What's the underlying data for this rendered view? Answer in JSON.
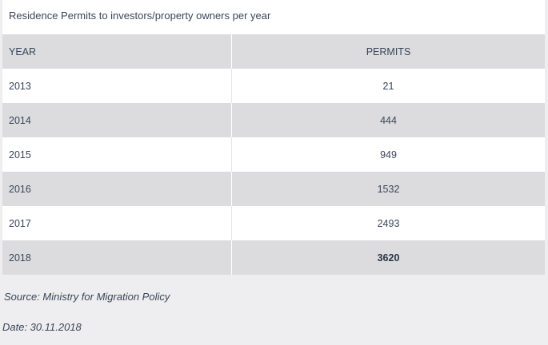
{
  "chart_data": {
    "type": "table",
    "title": "Residence Permits to investors/property owners per year",
    "columns": [
      "YEAR",
      "PERMITS"
    ],
    "rows": [
      {
        "year": "2013",
        "permits": "21"
      },
      {
        "year": "2014",
        "permits": "444"
      },
      {
        "year": "2015",
        "permits": "949"
      },
      {
        "year": "2016",
        "permits": "1532"
      },
      {
        "year": "2017",
        "permits": "2493"
      },
      {
        "year": "2018",
        "permits": "3620"
      }
    ],
    "highlight_row": 5
  },
  "footer": {
    "source": "Source: Ministry for Migration Policy",
    "date": "Date: 30.11.2018"
  },
  "colors": {
    "background": "#eeedef",
    "header_row": "#dcdcde",
    "text": "#39465a"
  }
}
